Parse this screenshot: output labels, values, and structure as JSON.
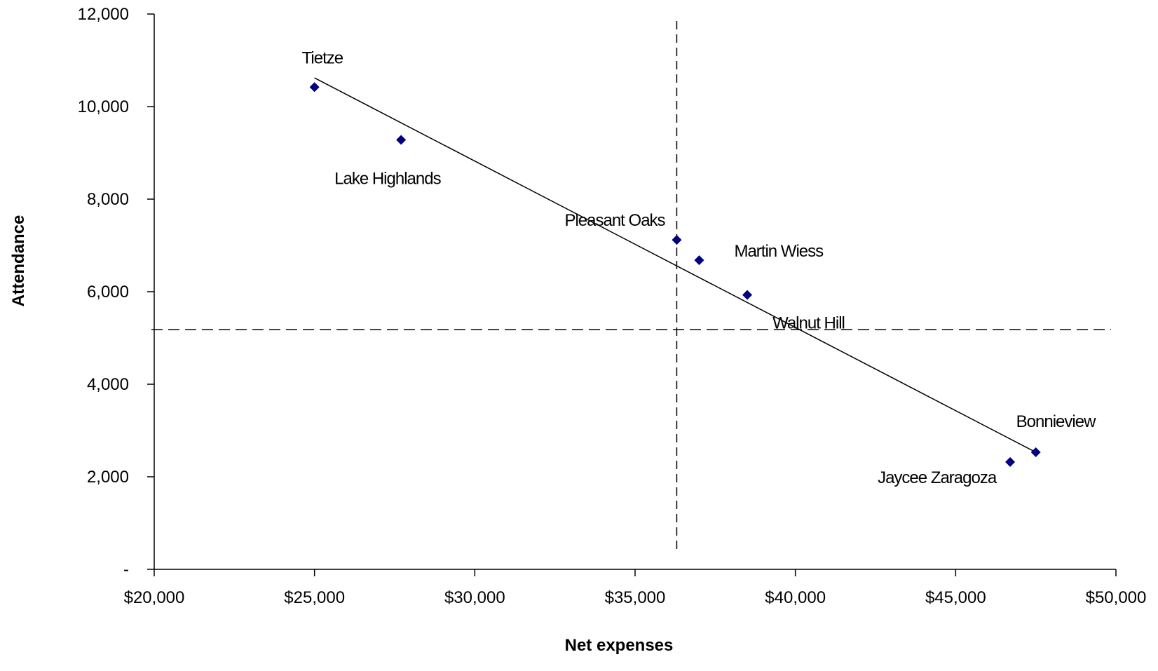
{
  "chart_data": {
    "type": "scatter",
    "title": "",
    "xlabel": "Net expenses",
    "ylabel": "Attendance",
    "xlim": [
      20000,
      50000
    ],
    "ylim": [
      0,
      12000
    ],
    "x_ticks": [
      20000,
      25000,
      30000,
      35000,
      40000,
      45000,
      50000
    ],
    "x_tick_labels": [
      "$20,000",
      "$25,000",
      "$30,000",
      "$35,000",
      "$40,000",
      "$45,000",
      "$50,000"
    ],
    "y_ticks": [
      0,
      2000,
      4000,
      6000,
      8000,
      10000,
      12000
    ],
    "y_tick_labels": [
      "-",
      "2,000",
      "4,000",
      "6,000",
      "8,000",
      "10,000",
      "12,000"
    ],
    "grid": false,
    "legend": "none",
    "marker_color": "#000080",
    "points": [
      {
        "label": "Tietze",
        "x": 25000,
        "y": 10420
      },
      {
        "label": "Lake Highlands",
        "x": 27700,
        "y": 9280
      },
      {
        "label": "Pleasant Oaks",
        "x": 36300,
        "y": 7120
      },
      {
        "label": "Martin Wiess",
        "x": 37000,
        "y": 6680
      },
      {
        "label": "Walnut Hill",
        "x": 38500,
        "y": 5930
      },
      {
        "label": "Jaycee Zaragoza",
        "x": 46700,
        "y": 2320
      },
      {
        "label": "Bonnieview",
        "x": 47500,
        "y": 2530
      }
    ],
    "trendline": {
      "type": "linear",
      "color": "#000000",
      "x_start": 25000,
      "y_start": 10620,
      "x_end": 47500,
      "y_end": 2530
    },
    "reference_lines": [
      {
        "orientation": "vertical",
        "x": 36300,
        "style": "dashed"
      },
      {
        "orientation": "horizontal",
        "y": 5180,
        "style": "dashed"
      }
    ]
  }
}
